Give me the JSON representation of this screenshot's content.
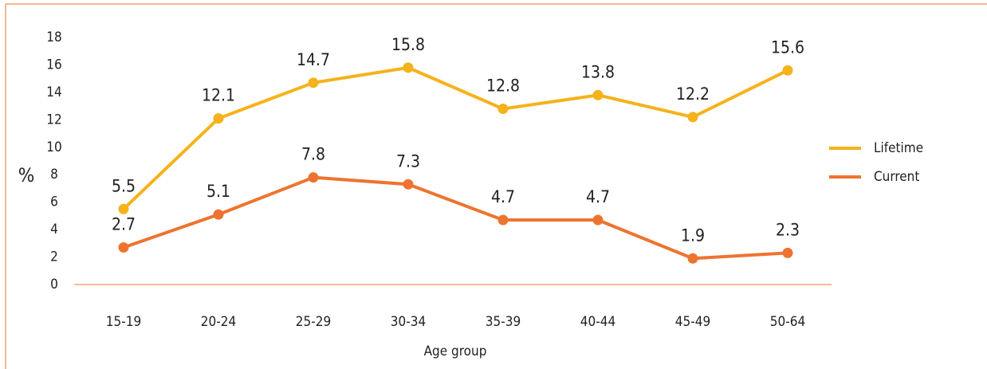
{
  "chart_data": {
    "type": "line",
    "categories": [
      "15-19",
      "20-24",
      "25-29",
      "30-34",
      "35-39",
      "40-44",
      "45-49",
      "50-64"
    ],
    "series": [
      {
        "name": "Lifetime",
        "color": "#f5b21a",
        "values": [
          5.5,
          12.1,
          14.7,
          15.8,
          12.8,
          13.8,
          12.2,
          15.6
        ]
      },
      {
        "name": "Current",
        "color": "#ed7430",
        "values": [
          2.7,
          5.1,
          7.8,
          7.3,
          4.7,
          4.7,
          1.9,
          2.3
        ]
      }
    ],
    "ylabel": "%",
    "xlabel": "Age group",
    "ylim": [
      0,
      18
    ],
    "yticks": [
      0,
      2,
      4,
      6,
      8,
      10,
      12,
      14,
      16,
      18
    ],
    "legend": "right"
  }
}
